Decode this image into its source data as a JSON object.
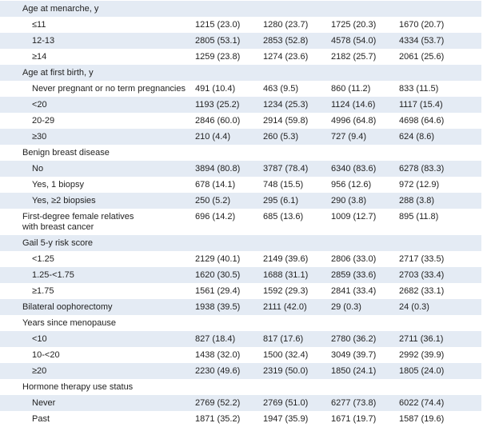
{
  "table": {
    "sections": [
      {
        "title": "Age at menarche, y",
        "rows": [
          [
            "≤11",
            "1215 (23.0)",
            "1280 (23.7)",
            "1725 (20.3)",
            "1670 (20.7)"
          ],
          [
            "12-13",
            "2805 (53.1)",
            "2853 (52.8)",
            "4578 (54.0)",
            "4334 (53.7)"
          ],
          [
            "≥14",
            "1259 (23.8)",
            "1274 (23.6)",
            "2182 (25.7)",
            "2061 (25.6)"
          ]
        ]
      },
      {
        "title": "Age at first birth, y",
        "rows": [
          [
            "Never pregnant or no term pregnancies",
            "491 (10.4)",
            "463 (9.5)",
            "860 (11.2)",
            "833 (11.5)"
          ],
          [
            "<20",
            "1193 (25.2)",
            "1234 (25.3)",
            "1124 (14.6)",
            "1117 (15.4)"
          ],
          [
            "20-29",
            "2846 (60.0)",
            "2914 (59.8)",
            "4996 (64.8)",
            "4698 (64.6)"
          ],
          [
            "≥30",
            "210 (4.4)",
            "260 (5.3)",
            "727 (9.4)",
            "624 (8.6)"
          ]
        ]
      },
      {
        "title": "Benign breast disease",
        "rows": [
          [
            "No",
            "3894 (80.8)",
            "3787 (78.4)",
            "6340 (83.6)",
            "6278 (83.3)"
          ],
          [
            "Yes, 1 biopsy",
            "678 (14.1)",
            "748 (15.5)",
            "956 (12.6)",
            "972 (12.9)"
          ],
          [
            "Yes, ≥2 biopsies",
            "250 (5.2)",
            "295 (6.1)",
            "290 (3.8)",
            "288 (3.8)"
          ]
        ]
      },
      {
        "title": "First-degree female relatives with breast cancer",
        "values": [
          "696 (14.2)",
          "685 (13.6)",
          "1009 (12.7)",
          "895 (11.8)"
        ]
      },
      {
        "title": "Gail 5-y risk score",
        "rows": [
          [
            "<1.25",
            "2129 (40.1)",
            "2149 (39.6)",
            "2806 (33.0)",
            "2717 (33.5)"
          ],
          [
            "1.25-<1.75",
            "1620 (30.5)",
            "1688 (31.1)",
            "2859 (33.6)",
            "2703 (33.4)"
          ],
          [
            "≥1.75",
            "1561 (29.4)",
            "1592 (29.3)",
            "2841 (33.4)",
            "2682 (33.1)"
          ]
        ]
      },
      {
        "title": "Bilateral oophorectomy",
        "values": [
          "1938 (39.5)",
          "2111 (42.0)",
          "29 (0.3)",
          "24 (0.3)"
        ]
      },
      {
        "title": "Years since menopause",
        "rows": [
          [
            "<10",
            "827 (18.4)",
            "817 (17.6)",
            "2780 (36.2)",
            "2711 (36.1)"
          ],
          [
            "10-<20",
            "1438 (32.0)",
            "1500 (32.4)",
            "3049 (39.7)",
            "2992 (39.9)"
          ],
          [
            "≥20",
            "2230 (49.6)",
            "2319 (50.0)",
            "1850 (24.1)",
            "1805 (24.0)"
          ]
        ]
      },
      {
        "title": "Hormone therapy use status",
        "rows": [
          [
            "Never",
            "2769 (52.2)",
            "2769 (51.0)",
            "6277 (73.8)",
            "6022 (74.4)"
          ],
          [
            "Past",
            "1871 (35.2)",
            "1947 (35.9)",
            "1671 (19.7)",
            "1587 (19.6)"
          ]
        ]
      }
    ]
  }
}
